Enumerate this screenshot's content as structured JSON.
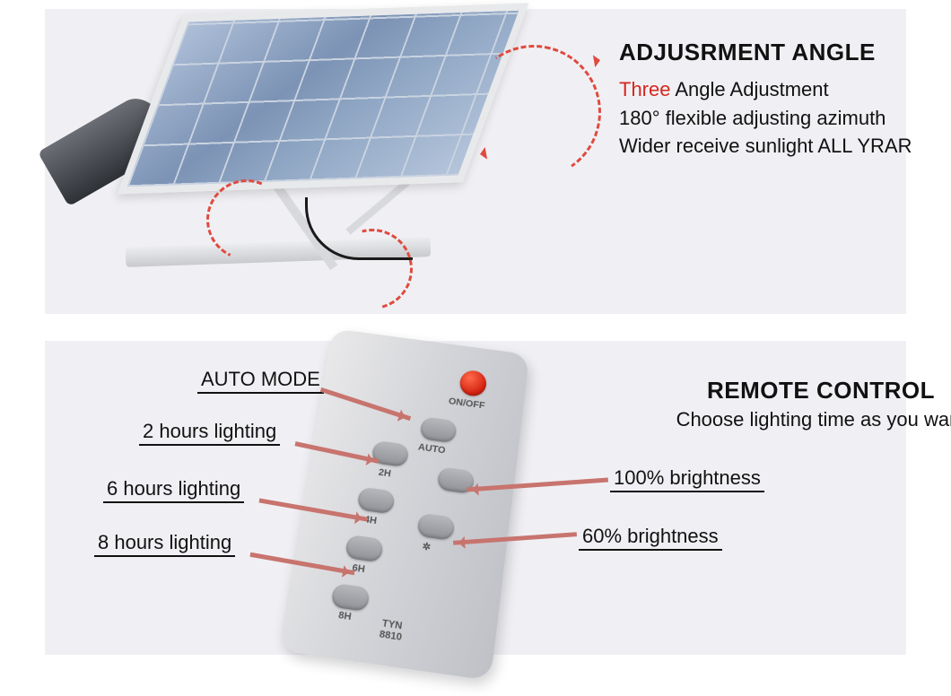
{
  "top": {
    "title": "ADJUSRMENT ANGLE",
    "highlight_word": "Three",
    "line1_rest": " Angle Adjustment",
    "line2": "180° flexible adjusting azimuth",
    "line3": "Wider receive sunlight  ALL YRAR",
    "arc_color": "#e04a3f",
    "panel_border": "#e8e9eb",
    "bg": "#f0f0f4"
  },
  "bottom": {
    "title": "REMOTE CONTROL",
    "subtitle": "Choose lighting time as you want",
    "bg": "#f0f0f4",
    "pointer_color": "#c8746e",
    "remote": {
      "model_line1": "TYN",
      "model_line2": "8810",
      "buttons": {
        "onoff": {
          "label": "ON/OFF",
          "color": "red"
        },
        "auto": {
          "label": "AUTO"
        },
        "h2": {
          "label": "2H"
        },
        "h4": {
          "label": "4H"
        },
        "h6": {
          "label": "6H"
        },
        "h8": {
          "label": "8H"
        },
        "b100": {
          "label": ""
        },
        "b60": {
          "label": "✲"
        }
      }
    },
    "callouts": {
      "auto": "AUTO MODE",
      "h2": "2 hours lighting",
      "h6": "6 hours lighting",
      "h8": "8 hours lighting",
      "b100": "100% brightness",
      "b60": "60% brightness"
    }
  }
}
